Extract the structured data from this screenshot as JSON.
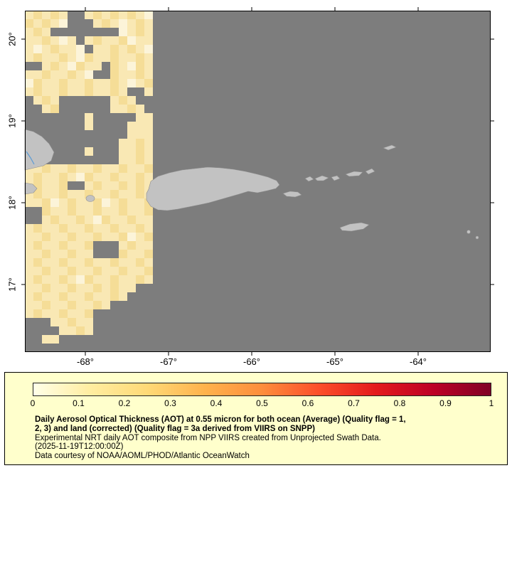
{
  "map": {
    "lat_ticks": [
      {
        "label": "20°",
        "deg": 20
      },
      {
        "label": "19°",
        "deg": 19
      },
      {
        "label": "18°",
        "deg": 18
      },
      {
        "label": "17°",
        "deg": 17
      }
    ],
    "lon_ticks": [
      {
        "label": "-68°",
        "deg": -68
      },
      {
        "label": "-67°",
        "deg": -67
      },
      {
        "label": "-66°",
        "deg": -66
      },
      {
        "label": "-65°",
        "deg": -65
      },
      {
        "label": "-64°",
        "deg": -64
      }
    ],
    "colors": {
      "ocean_nodata": "#7d7d7d",
      "land": "#c2c2c2",
      "coast": "#8f8f8f",
      "river": "#5b9bd5"
    },
    "palette": {
      "1": "#fcf4d9",
      "2": "#f9e8b4",
      "3": "#f5dd97",
      "4": "#f0cd7a"
    },
    "grid_rows": [
      "23232..23232321",
      "32321...2321232",
      "232........1232",
      "223212.23223122",
      "2123221.2232321",
      "232232132232232",
      "..2321322.32132",
      "22322321..32232",
      "132232232232123",
      "232232232232..2",
      ".232......232..",
      "..23......2232.",
      ".......2.....22",
      ".......2....222",
      "............222",
      "...........2232",
      ".......2...2232",
      "...........2232",
      "223223223223223",
      "232232132232232",
      "23223..23223232",
      "232232232232232",
      "223123223123223",
      "..3223223223223",
      "..2322321322322",
      "232232232232232",
      "223223223223123",
      "23223223...2322",
      "22322322...3223",
      "232232232232232",
      "223223223223223",
      "232232132232232",
      "2232232232322..",
      "232232232232...",
      "2232232232.....",
      "23223223.......",
      "...22322.......",
      "....2232.......",
      "..22...........",
      "..............."
    ]
  },
  "colorbar": {
    "min": 0,
    "max": 1,
    "ticks": [
      "0",
      "0.1",
      "0.2",
      "0.3",
      "0.4",
      "0.5",
      "0.6",
      "0.7",
      "0.8",
      "0.9",
      "1"
    ],
    "gradient": [
      "#ffffe8",
      "#ffeda0",
      "#fed976",
      "#feb24c",
      "#fd8d3c",
      "#fc4e2a",
      "#e31a1c",
      "#bd0026",
      "#800026"
    ]
  },
  "legend": {
    "background": "#ffffcc",
    "title_lines": [
      "Daily Aerosol Optical Thickness (AOT) at 0.55 micron for both ocean (Average) (Quality flag = 1,",
      "2, 3) and land (corrected) (Quality flag = 3a derived from VIIRS on SNPP)"
    ],
    "body_lines": [
      "Experimental NRT daily AOT composite from NPP VIIRS created from Unprojected Swath Data.",
      "(2025-11-19T12:00:00Z)",
      "Data courtesy of NOAA/AOML/PHOD/Atlantic OceanWatch"
    ]
  }
}
